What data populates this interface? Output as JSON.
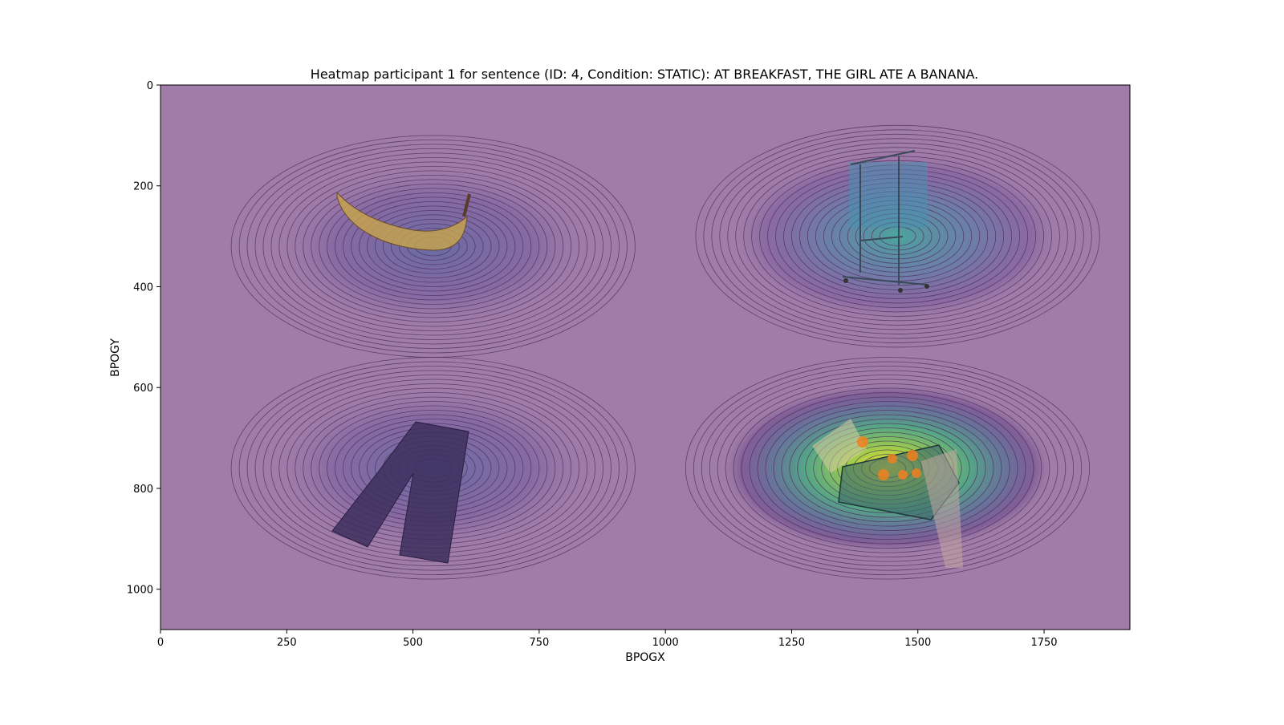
{
  "chart_data": {
    "type": "heatmap",
    "title": "Heatmap participant 1 for sentence (ID: 4, Condition: STATIC):  AT BREAKFAST, THE GIRL ATE A BANANA.",
    "xlabel": "BPOGX",
    "ylabel": "BPOGY",
    "xlim": [
      0,
      1920
    ],
    "ylim": [
      1080,
      0
    ],
    "x_ticks": [
      0,
      250,
      500,
      750,
      1000,
      1250,
      1500,
      1750
    ],
    "y_ticks": [
      0,
      200,
      400,
      600,
      800,
      1000
    ],
    "x_tick_labels": [
      "0",
      "250",
      "500",
      "750",
      "1000",
      "1250",
      "1500",
      "1750"
    ],
    "y_tick_labels": [
      "0",
      "200",
      "400",
      "600",
      "800",
      "1000"
    ],
    "colormap": "viridis",
    "background_color": "#a07ca8",
    "contour_line_color": "#4a2a5a",
    "grid": false,
    "fixation_clusters": [
      {
        "x": 540,
        "y": 320,
        "relative_density": 0.4
      },
      {
        "x": 1460,
        "y": 300,
        "relative_density": 0.55
      },
      {
        "x": 540,
        "y": 760,
        "relative_density": 0.38
      },
      {
        "x": 1440,
        "y": 760,
        "relative_density": 1.0
      }
    ],
    "stimulus_images": [
      {
        "name": "banana",
        "x": 510,
        "y": 270
      },
      {
        "name": "clothes-rack",
        "x": 1440,
        "y": 270
      },
      {
        "name": "trousers",
        "x": 500,
        "y": 800
      },
      {
        "name": "tray-with-hands",
        "x": 1430,
        "y": 790
      }
    ]
  }
}
